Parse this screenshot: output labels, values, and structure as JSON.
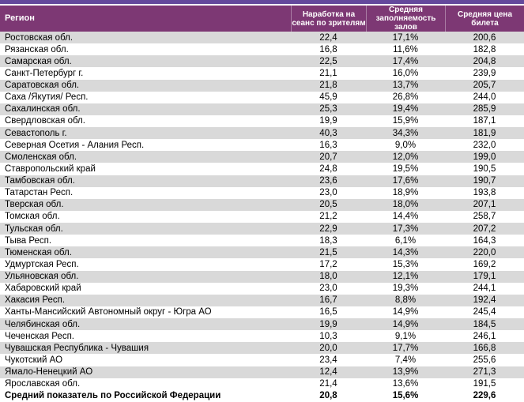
{
  "table": {
    "columns": [
      "Регион",
      "Наработка на\nсеанс по зрителям",
      "Средняя\nзаполняемость\nзалов",
      "Средняя цена\nбилета"
    ],
    "rows": [
      [
        "Ростовская обл.",
        "22,4",
        "17,1%",
        "200,6"
      ],
      [
        "Рязанская обл.",
        "16,8",
        "11,6%",
        "182,8"
      ],
      [
        "Самарская обл.",
        "22,5",
        "17,4%",
        "204,8"
      ],
      [
        "Санкт-Петербург г.",
        "21,1",
        "16,0%",
        "239,9"
      ],
      [
        "Саратовская обл.",
        "21,8",
        "13,7%",
        "205,7"
      ],
      [
        "Саха /Якутия/ Респ.",
        "45,9",
        "26,8%",
        "244,0"
      ],
      [
        "Сахалинская обл.",
        "25,3",
        "19,4%",
        "285,9"
      ],
      [
        "Свердловская обл.",
        "19,9",
        "15,9%",
        "187,1"
      ],
      [
        "Севастополь г.",
        "40,3",
        "34,3%",
        "181,9"
      ],
      [
        "Северная Осетия - Алания Респ.",
        "16,3",
        "9,0%",
        "232,0"
      ],
      [
        "Смоленская обл.",
        "20,7",
        "12,0%",
        "199,0"
      ],
      [
        "Ставропольский край",
        "24,8",
        "19,5%",
        "190,5"
      ],
      [
        "Тамбовская обл.",
        "23,6",
        "17,6%",
        "190,7"
      ],
      [
        "Татарстан Респ.",
        "23,0",
        "18,9%",
        "193,8"
      ],
      [
        "Тверская обл.",
        "20,5",
        "18,0%",
        "207,1"
      ],
      [
        "Томская обл.",
        "21,2",
        "14,4%",
        "258,7"
      ],
      [
        "Тульская обл.",
        "22,9",
        "17,3%",
        "207,2"
      ],
      [
        "Тыва Респ.",
        "18,3",
        "6,1%",
        "164,3"
      ],
      [
        "Тюменская обл.",
        "21,5",
        "14,3%",
        "220,0"
      ],
      [
        "Удмуртская Респ.",
        "17,2",
        "15,3%",
        "169,2"
      ],
      [
        "Ульяновская обл.",
        "18,0",
        "12,1%",
        "179,1"
      ],
      [
        "Хабаровский край",
        "23,0",
        "19,3%",
        "244,1"
      ],
      [
        "Хакасия Респ.",
        "16,7",
        "8,8%",
        "192,4"
      ],
      [
        "Ханты-Мансийский Автономный округ - Югра АО",
        "16,5",
        "14,9%",
        "245,4"
      ],
      [
        "Челябинская обл.",
        "19,9",
        "14,9%",
        "184,5"
      ],
      [
        "Чеченская Респ.",
        "10,3",
        "9,1%",
        "246,1"
      ],
      [
        "Чувашская Республика - Чувашия",
        "20,0",
        "17,7%",
        "166,8"
      ],
      [
        "Чукотский АО",
        "23,4",
        "7,4%",
        "255,6"
      ],
      [
        "Ямало-Ненецкий АО",
        "12,4",
        "13,9%",
        "271,3"
      ],
      [
        "Ярославская обл.",
        "21,4",
        "13,6%",
        "191,5"
      ]
    ],
    "total": {
      "region": "Средний показатель по Российской Федерации",
      "sessions": "20,8",
      "occupancy": "15,6%",
      "price": "229,6"
    }
  },
  "colors": {
    "top_bar": "#64489c",
    "header_bg": "#7d3874",
    "header_text": "#ffffff",
    "stripe": "#d9d9d9",
    "text": "#000000"
  }
}
